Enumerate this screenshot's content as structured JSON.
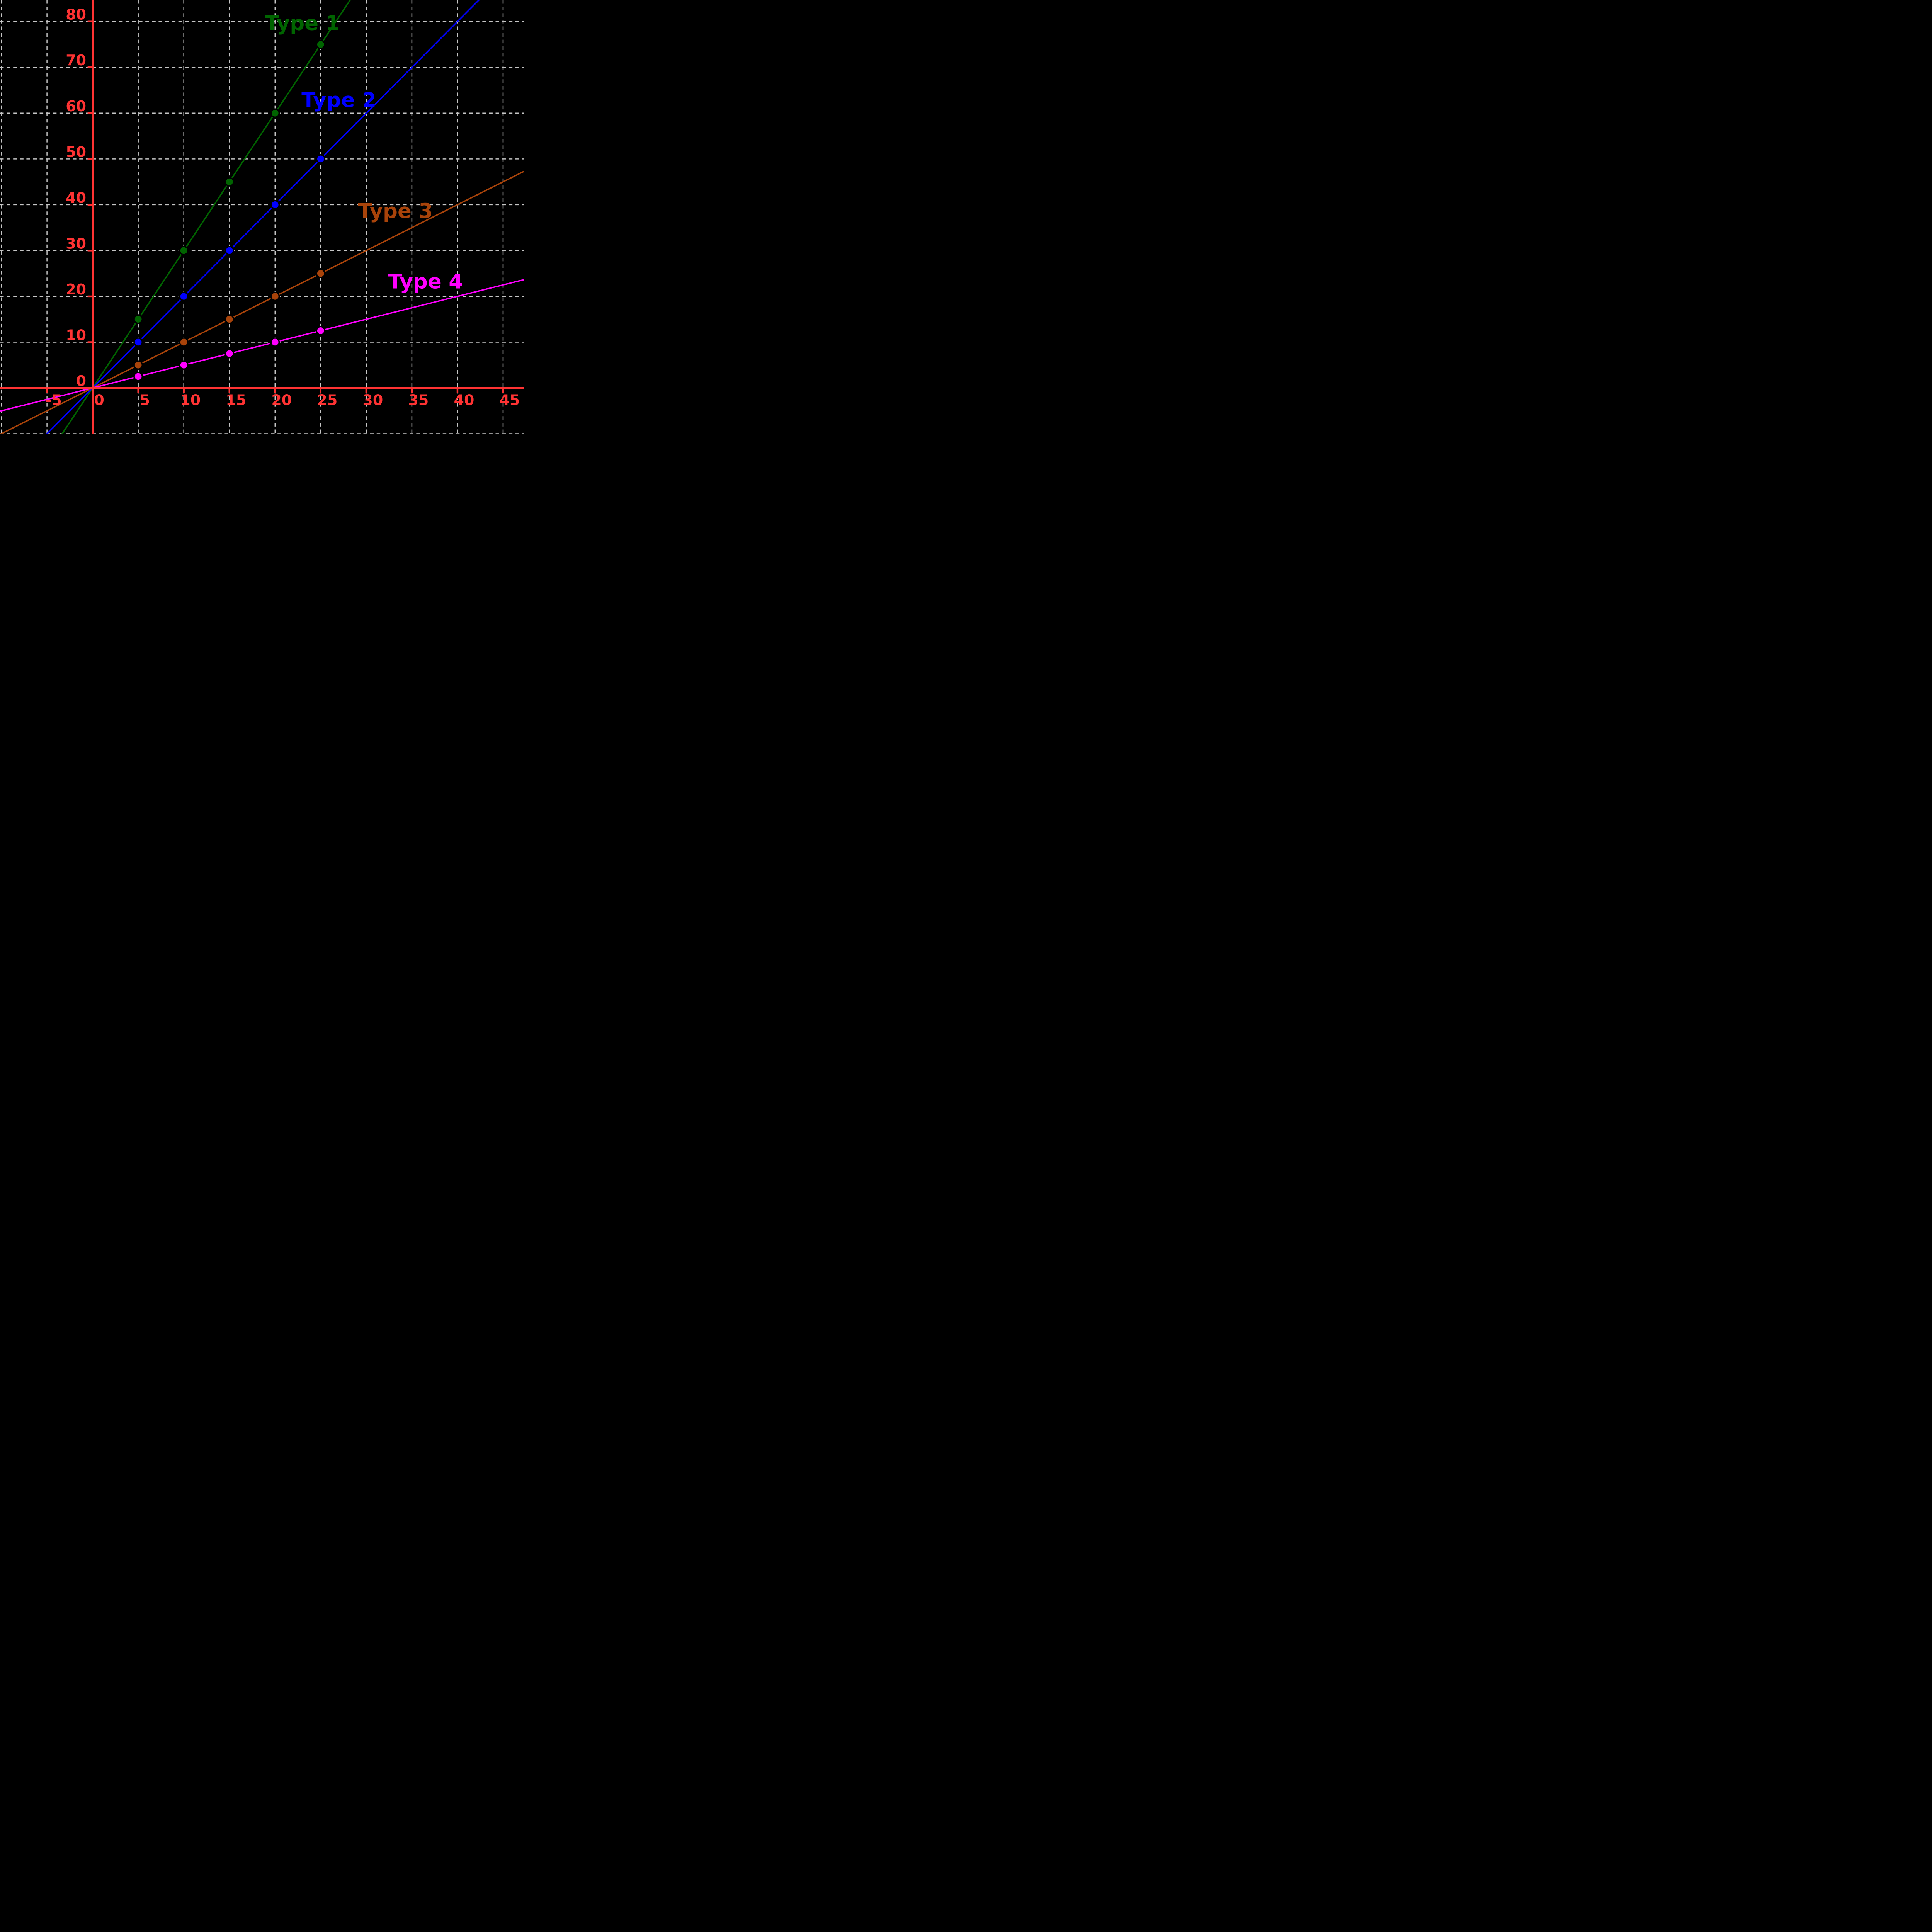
{
  "chart_data": {
    "type": "line",
    "title": "",
    "xlabel": "",
    "ylabel": "",
    "grid": true,
    "legend_position": "inline-labels",
    "background_color": "#000000",
    "axis_color": "#ff3333",
    "grid_color": "#c6c6c6",
    "xlim": [
      -10.15,
      47.33
    ],
    "ylim": [
      -10.04,
      84.7
    ],
    "x_tick_values": [
      -5,
      0,
      5,
      10,
      15,
      20,
      25,
      30,
      35,
      40,
      45
    ],
    "x_tick_labels": [
      "-5",
      "0",
      "5",
      "10",
      "15",
      "20",
      "25",
      "30",
      "35",
      "40",
      "45"
    ],
    "y_tick_values": [
      0,
      10,
      20,
      30,
      40,
      50,
      60,
      70,
      80
    ],
    "y_tick_labels": [
      "0",
      "10",
      "20",
      "30",
      "40",
      "50",
      "60",
      "70",
      "80"
    ],
    "x_gridlines": [
      -10,
      -5,
      5,
      10,
      15,
      20,
      25,
      30,
      35,
      40,
      45
    ],
    "y_gridlines": [
      -10,
      10,
      20,
      30,
      40,
      50,
      60,
      70,
      80
    ],
    "line_extent_x": [
      -12,
      48
    ],
    "series": [
      {
        "name": "Type 1",
        "color": "#006400",
        "slope": 3,
        "x": [
          5,
          10,
          15,
          20,
          25
        ],
        "y": [
          15,
          30,
          45,
          60,
          75
        ],
        "label_anchor": {
          "x": 23.0,
          "y": 79.7
        }
      },
      {
        "name": "Type 2",
        "color": "#0000ff",
        "slope": 2,
        "x": [
          5,
          10,
          15,
          20,
          25
        ],
        "y": [
          10,
          20,
          30,
          40,
          50
        ],
        "label_anchor": {
          "x": 27.0,
          "y": 62.9
        }
      },
      {
        "name": "Type 3",
        "color": "#a8430a",
        "slope": 1,
        "x": [
          5,
          10,
          15,
          20,
          25
        ],
        "y": [
          5,
          10,
          15,
          20,
          25
        ],
        "label_anchor": {
          "x": 33.2,
          "y": 38.7
        }
      },
      {
        "name": "Type 4",
        "color": "#ff00ff",
        "slope": 0.5,
        "x": [
          5,
          10,
          15,
          20,
          25
        ],
        "y": [
          2.5,
          5,
          7.5,
          10,
          12.5
        ],
        "label_anchor": {
          "x": 36.5,
          "y": 23.3
        }
      }
    ]
  }
}
